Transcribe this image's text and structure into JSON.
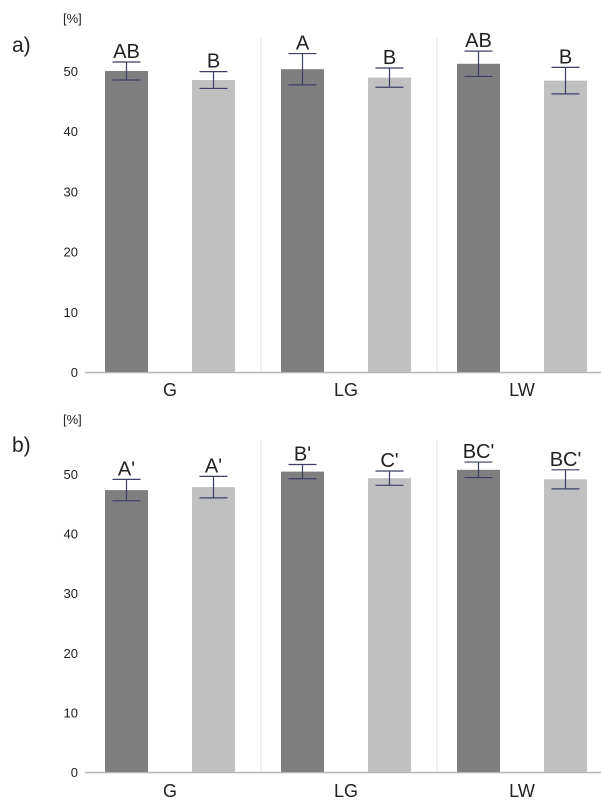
{
  "colors": {
    "dark_bar": "#7f7f7f",
    "light_bar": "#c0c0c0",
    "error_bar": "#3b3f66",
    "axis": "#b5b5b5",
    "separator": "#e4e4e4",
    "text": "#222222"
  },
  "chart_data": [
    {
      "type": "bar",
      "panel_label": "a)",
      "ylabel": "[%]",
      "ylim": [
        0,
        55
      ],
      "yticks": [
        0,
        10,
        20,
        30,
        40,
        50
      ],
      "grid": false,
      "categories": [
        "G",
        "LG",
        "LW"
      ],
      "series": [
        {
          "color": "#7f7f7f",
          "values": [
            50.0,
            50.3,
            51.2
          ],
          "errors": [
            1.5,
            2.6,
            2.1
          ],
          "labels": [
            "AB",
            "A",
            "AB"
          ]
        },
        {
          "color": "#c0c0c0",
          "values": [
            48.5,
            48.9,
            48.4
          ],
          "errors": [
            1.4,
            1.6,
            2.2
          ],
          "labels": [
            "B",
            "B",
            "B"
          ]
        }
      ]
    },
    {
      "type": "bar",
      "panel_label": "b)",
      "ylabel": "[%]",
      "ylim": [
        0,
        55
      ],
      "yticks": [
        0,
        10,
        20,
        30,
        40,
        50
      ],
      "grid": false,
      "categories": [
        "G",
        "LG",
        "LW"
      ],
      "series": [
        {
          "color": "#7f7f7f",
          "values": [
            47.3,
            50.4,
            50.7
          ],
          "errors": [
            1.8,
            1.2,
            1.3
          ],
          "labels": [
            "A'",
            "B'",
            "BC'"
          ]
        },
        {
          "color": "#c0c0c0",
          "values": [
            47.8,
            49.3,
            49.1
          ],
          "errors": [
            1.8,
            1.2,
            1.6
          ],
          "labels": [
            "A'",
            "C'",
            "BC'"
          ]
        }
      ]
    }
  ]
}
